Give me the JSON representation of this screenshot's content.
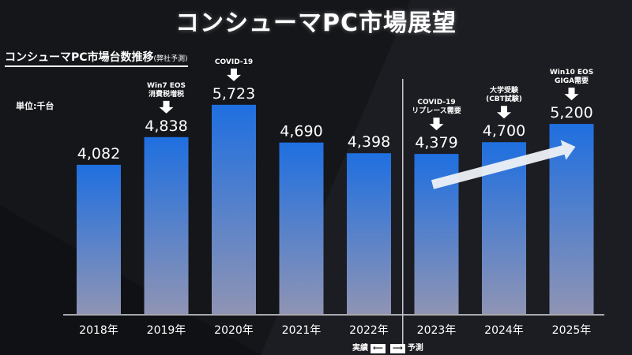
{
  "page": {
    "title": "コンシューマPC市場展望",
    "subtitle": "コンシューマPC市場台数推移",
    "subtitle_note": "(弊社予測)",
    "unit": "単位:千台",
    "legend_actual": "実績",
    "legend_forecast": "予測",
    "legend_arrow_left": "⟵",
    "legend_arrow_right": "⟶"
  },
  "chart_data": {
    "type": "bar",
    "title": "コンシューマPC市場台数推移",
    "categories": [
      "2018年",
      "2019年",
      "2020年",
      "2021年",
      "2022年",
      "2023年",
      "2024年",
      "2025年"
    ],
    "values": [
      4082,
      4838,
      5723,
      4690,
      4398,
      4379,
      4700,
      5200
    ],
    "value_labels": [
      "4,082",
      "4,838",
      "5,723",
      "4,690",
      "4,398",
      "4,379",
      "4,700",
      "5,200"
    ],
    "ylabel": "単位:千台",
    "ylim": [
      0,
      6000
    ],
    "grid": false,
    "divider_after_category": "2022年",
    "annotations": [
      {
        "category": "2019年",
        "lines": [
          "Win7 EOS",
          "消費税増税"
        ]
      },
      {
        "category": "2020年",
        "lines": [
          "COVID-19"
        ]
      },
      {
        "category": "2023年",
        "lines": [
          "COVID-19",
          "リプレース需要"
        ]
      },
      {
        "category": "2024年",
        "lines": [
          "大学受験",
          "(CBT試験)"
        ]
      },
      {
        "category": "2025年",
        "lines": [
          "Win10 EOS",
          "GIGA需要"
        ]
      }
    ],
    "trend_arrow": {
      "from_category": "2023年",
      "to_category": "2025年"
    },
    "colors": {
      "bar_top": "#1f6fe0",
      "bar_bottom": "#8f94b4",
      "background": "#15161a",
      "text": "#ffffff"
    }
  }
}
